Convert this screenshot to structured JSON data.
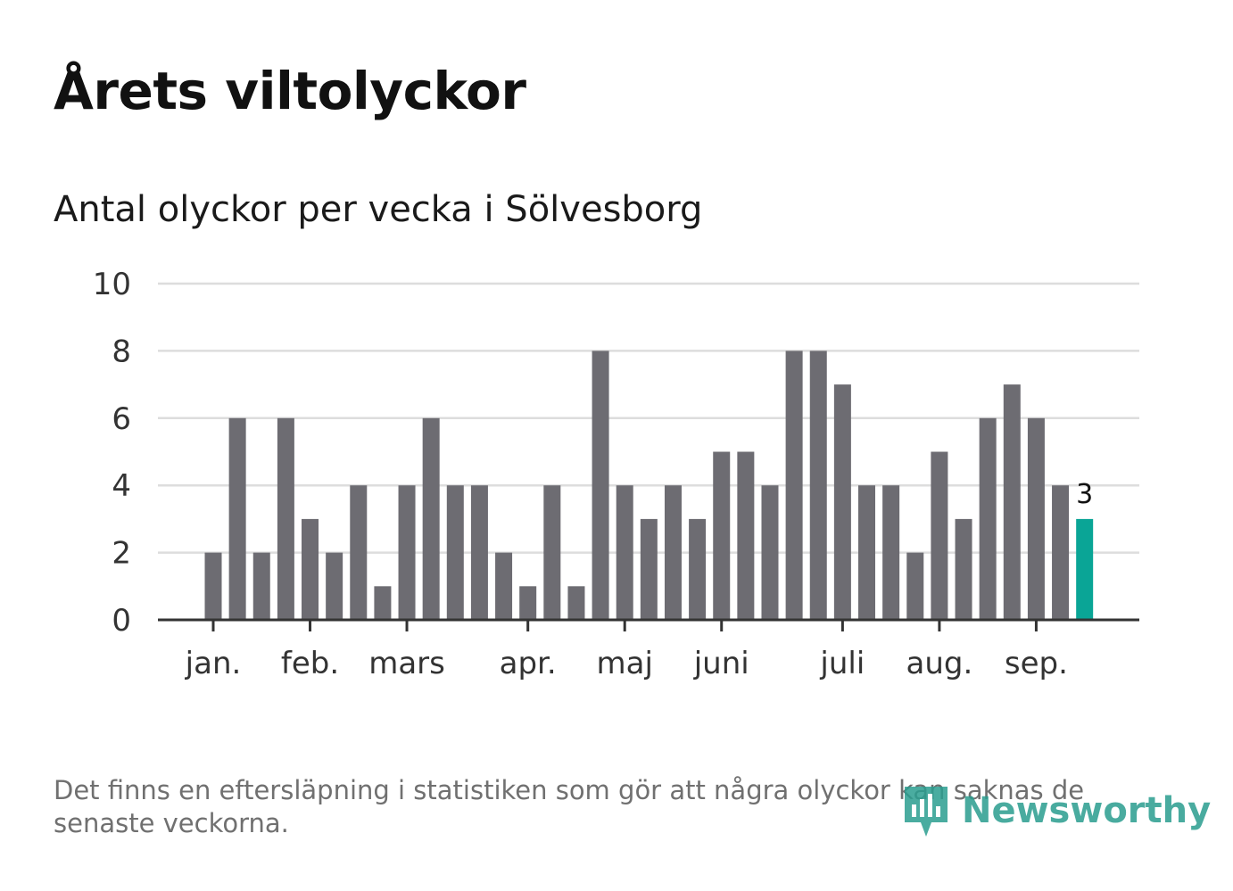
{
  "title": "Årets viltolyckor",
  "subtitle": "Antal olyckor per vecka i Sölvesborg",
  "footnote": "Det finns en eftersläpning i statistiken som gör att några olyckor kan saknas de senaste veckorna.",
  "logo_text": "Newsworthy",
  "colors": {
    "bar": "#6d6c72",
    "highlight": "#0aa596",
    "grid": "#dddddd",
    "axis": "#333333",
    "logo": "#2a9d8f"
  },
  "chart_data": {
    "type": "bar",
    "title": "Antal olyckor per vecka i Sölvesborg",
    "xlabel": "",
    "ylabel": "",
    "ylim": [
      0,
      10
    ],
    "yticks": [
      "0",
      "2",
      "4",
      "6",
      "8",
      "10"
    ],
    "grid": true,
    "values": [
      2,
      6,
      2,
      6,
      3,
      2,
      4,
      1,
      4,
      6,
      4,
      4,
      2,
      1,
      4,
      1,
      8,
      4,
      3,
      4,
      3,
      5,
      5,
      4,
      8,
      8,
      7,
      4,
      4,
      2,
      5,
      3,
      6,
      7,
      6,
      4,
      3
    ],
    "month_labels": [
      {
        "label": "jan.",
        "week": 1
      },
      {
        "label": "feb.",
        "week": 5
      },
      {
        "label": "mars",
        "week": 9
      },
      {
        "label": "apr.",
        "week": 14
      },
      {
        "label": "maj",
        "week": 18
      },
      {
        "label": "juni",
        "week": 22
      },
      {
        "label": "juli",
        "week": 27
      },
      {
        "label": "aug.",
        "week": 31
      },
      {
        "label": "sep.",
        "week": 35
      }
    ],
    "highlight_index": 36,
    "highlight_label": "3"
  }
}
